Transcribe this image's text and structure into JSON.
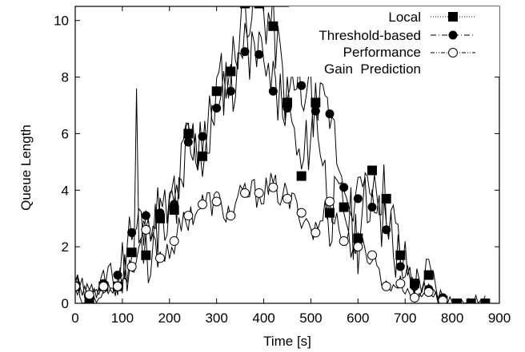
{
  "chart_data": {
    "type": "line",
    "title": "",
    "xlabel": "Time [s]",
    "ylabel": "Queue Length",
    "xlim": [
      0,
      900
    ],
    "ylim": [
      0,
      10.5
    ],
    "xticks": [
      0,
      100,
      200,
      300,
      400,
      500,
      600,
      700,
      800,
      900
    ],
    "yticks": [
      0,
      2,
      4,
      6,
      8,
      10
    ],
    "grid": false,
    "legend_position": "top-right",
    "series": [
      {
        "name": "Local",
        "marker": "square-filled",
        "line_style": "dotted",
        "x": [
          0,
          30,
          60,
          90,
          120,
          150,
          180,
          210,
          240,
          270,
          300,
          330,
          360,
          390,
          420,
          450,
          480,
          510,
          540,
          570,
          600,
          630,
          660,
          690,
          720,
          750,
          780,
          810,
          840,
          870
        ],
        "y": [
          0.6,
          0.1,
          0.6,
          0.6,
          1.8,
          1.7,
          3.0,
          3.3,
          6.0,
          5.2,
          7.5,
          8.2,
          10.6,
          10.6,
          9.8,
          7.1,
          4.5,
          7.1,
          3.2,
          3.4,
          2.3,
          4.7,
          3.7,
          1.7,
          0.7,
          1.0,
          0.1,
          0.0,
          0.0,
          0.0
        ]
      },
      {
        "name": "Threshold-based",
        "marker": "circle-filled",
        "line_style": "dash-dot",
        "x": [
          0,
          30,
          60,
          90,
          120,
          150,
          180,
          210,
          240,
          270,
          300,
          330,
          360,
          390,
          420,
          450,
          480,
          510,
          540,
          570,
          600,
          630,
          660,
          690,
          720,
          750,
          780
        ],
        "y": [
          0.6,
          0.3,
          0.7,
          1.0,
          2.5,
          3.1,
          3.2,
          3.5,
          5.7,
          5.9,
          6.9,
          7.5,
          8.9,
          8.8,
          7.5,
          6.9,
          7.7,
          6.8,
          6.7,
          4.1,
          3.7,
          3.4,
          2.6,
          1.3,
          0.6,
          0.5,
          0.2
        ]
      },
      {
        "name": "Performance Gain Prediction",
        "marker": "circle-open",
        "line_style": "dash-dot-dot",
        "x": [
          0,
          30,
          60,
          90,
          120,
          150,
          180,
          210,
          240,
          270,
          300,
          330,
          360,
          390,
          420,
          450,
          480,
          510,
          540,
          570,
          600,
          630,
          660,
          690,
          720,
          750,
          780
        ],
        "y": [
          0.6,
          0.3,
          0.6,
          0.6,
          1.3,
          2.6,
          1.6,
          2.2,
          3.1,
          3.5,
          3.6,
          3.1,
          3.9,
          3.9,
          4.1,
          3.7,
          3.2,
          2.5,
          3.6,
          2.2,
          2.0,
          1.7,
          0.6,
          0.7,
          0.2,
          0.4,
          0.1
        ]
      }
    ]
  },
  "legend": {
    "local": "Local",
    "threshold": "Threshold-based",
    "perf_line1": "Performance",
    "perf_line2": "Gain  Prediction"
  }
}
